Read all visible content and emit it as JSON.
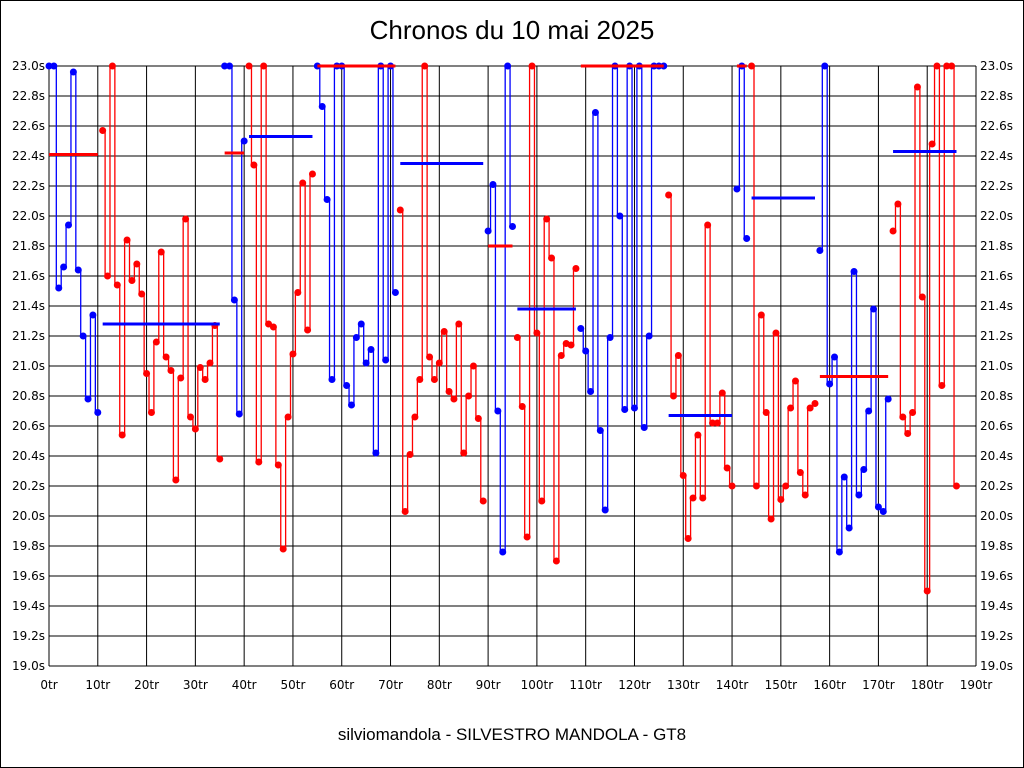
{
  "chart_data": {
    "type": "line",
    "title": "Chronos du 10 mai 2025",
    "xlabel": "silviomandola - SILVESTRO MANDOLA - GT8",
    "ylabel": "",
    "xlim": [
      0,
      190
    ],
    "ylim": [
      19.0,
      23.0
    ],
    "x_ticks": [
      "0tr",
      "10tr",
      "20tr",
      "30tr",
      "40tr",
      "50tr",
      "60tr",
      "70tr",
      "80tr",
      "90tr",
      "100tr",
      "110tr",
      "120tr",
      "130tr",
      "140tr",
      "150tr",
      "160tr",
      "170tr",
      "180tr",
      "190tr"
    ],
    "y_ticks": [
      "19.0s",
      "19.2s",
      "19.4s",
      "19.6s",
      "19.8s",
      "20.0s",
      "20.2s",
      "20.4s",
      "20.6s",
      "20.8s",
      "21.0s",
      "21.2s",
      "21.4s",
      "21.6s",
      "21.8s",
      "22.0s",
      "22.2s",
      "22.4s",
      "22.6s",
      "22.8s",
      "23.0s"
    ],
    "grid": true,
    "colors": {
      "blue": "#0000ff",
      "red": "#ff0000"
    },
    "segments": [
      {
        "color": "blue",
        "start_lap": 0,
        "avg": 22.41,
        "avg_color": "red",
        "values": [
          23.0,
          23.0,
          21.52,
          21.66,
          21.94,
          22.96,
          21.64,
          21.2,
          20.78,
          21.34,
          20.69
        ]
      },
      {
        "color": "red",
        "start_lap": 11,
        "avg": 21.28,
        "avg_color": "blue",
        "values": [
          22.57,
          21.6,
          23.0,
          21.54,
          20.54,
          21.84,
          21.57,
          21.68,
          21.48,
          20.95,
          20.69,
          21.16,
          21.76,
          21.06,
          20.97,
          20.24,
          20.92,
          21.98,
          20.66,
          20.58,
          20.99,
          20.91,
          21.02,
          21.27,
          20.38
        ]
      },
      {
        "color": "blue",
        "start_lap": 36,
        "avg": 22.42,
        "avg_color": "red",
        "values": [
          23.0,
          23.0,
          21.44,
          20.68,
          22.5
        ]
      },
      {
        "color": "red",
        "start_lap": 41,
        "avg": 22.53,
        "avg_color": "blue",
        "values": [
          23.0,
          22.34,
          20.36,
          23.0,
          21.28,
          21.26,
          20.34,
          19.78,
          20.66,
          21.08,
          21.49,
          22.22,
          21.24,
          22.28
        ]
      },
      {
        "color": "blue",
        "start_lap": 55,
        "avg": 23.0,
        "avg_color": "red",
        "values": [
          23.0,
          22.73,
          22.11,
          20.91,
          23.0,
          23.0,
          20.87,
          20.74,
          21.19,
          21.28,
          21.02,
          21.11,
          20.42,
          23.0,
          21.04,
          23.0,
          21.49
        ]
      },
      {
        "color": "red",
        "start_lap": 72,
        "avg": 22.35,
        "avg_color": "blue",
        "values": [
          22.04,
          20.03,
          20.41,
          20.66,
          20.91,
          23.0,
          21.06,
          20.91,
          21.02,
          21.23,
          20.83,
          20.78,
          21.28,
          20.42,
          20.8,
          21.0,
          20.65,
          20.1
        ]
      },
      {
        "color": "blue",
        "start_lap": 90,
        "avg": 21.8,
        "avg_color": "red",
        "values": [
          21.9,
          22.21,
          20.7,
          19.76,
          23.0,
          21.93
        ]
      },
      {
        "color": "red",
        "start_lap": 96,
        "avg": 21.38,
        "avg_color": "blue",
        "values": [
          21.19,
          20.73,
          19.86,
          23.0,
          21.22,
          20.1,
          21.98,
          21.72,
          19.7,
          21.07,
          21.15,
          21.14,
          21.65
        ]
      },
      {
        "color": "blue",
        "start_lap": 109,
        "avg": 23.0,
        "avg_color": "red",
        "values": [
          21.25,
          21.1,
          20.83,
          22.69,
          20.57,
          20.04,
          21.19,
          23.0,
          22.0,
          20.71,
          23.0,
          20.72,
          23.0,
          20.59,
          21.2,
          23.0,
          23.0,
          23.0
        ]
      },
      {
        "color": "red",
        "start_lap": 127,
        "avg": 20.67,
        "avg_color": "blue",
        "values": [
          22.14,
          20.8,
          21.07,
          20.27,
          19.85,
          20.12,
          20.54,
          20.12,
          21.94,
          20.62,
          20.62,
          20.82,
          20.32,
          20.2
        ]
      },
      {
        "color": "blue",
        "start_lap": 141,
        "avg": 23.0,
        "avg_color": "red",
        "values": [
          22.18,
          23.0,
          21.85
        ]
      },
      {
        "color": "red",
        "start_lap": 144,
        "avg": 22.12,
        "avg_color": "blue",
        "values": [
          23.0,
          20.2,
          21.34,
          20.69,
          19.98,
          21.22,
          20.11,
          20.2,
          20.72,
          20.9,
          20.29,
          20.14,
          20.72,
          20.75
        ]
      },
      {
        "color": "blue",
        "start_lap": 158,
        "avg": 20.93,
        "avg_color": "red",
        "values": [
          21.77,
          23.0,
          20.88,
          21.06,
          19.76,
          20.26,
          19.92,
          21.63,
          20.14,
          20.31,
          20.7,
          21.38,
          20.06,
          20.03,
          20.78
        ]
      },
      {
        "color": "red",
        "start_lap": 173,
        "avg": 22.43,
        "avg_color": "blue",
        "values": [
          21.9,
          22.08,
          20.66,
          20.55,
          20.69,
          22.86,
          21.46,
          19.5,
          22.48,
          23.0,
          20.87,
          23.0,
          23.0,
          20.2
        ]
      }
    ]
  }
}
